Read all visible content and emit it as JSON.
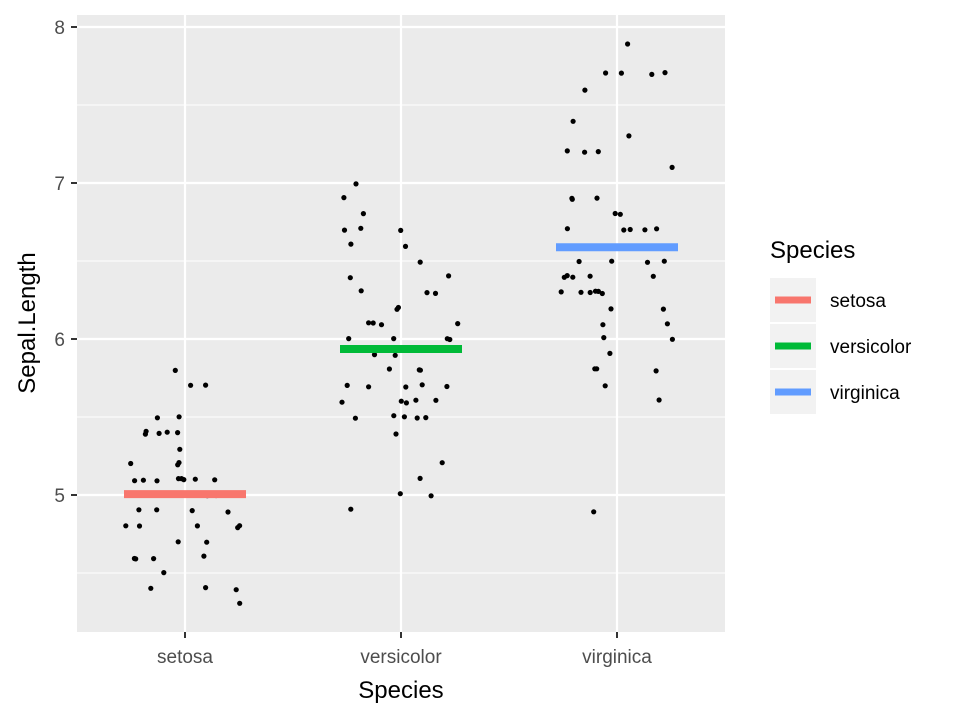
{
  "chart_data": {
    "type": "scatter",
    "xlabel": "Species",
    "ylabel": "Sepal.Length",
    "categories": [
      "setosa",
      "versicolor",
      "virginica"
    ],
    "yticks": [
      "5",
      "6",
      "7",
      "8"
    ],
    "ylim": [
      4.2,
      8.1
    ],
    "grid": true,
    "legend": {
      "title": "Species",
      "position": "right",
      "entries": [
        {
          "label": "setosa",
          "color": "#F8766D"
        },
        {
          "label": "versicolor",
          "color": "#00BA38"
        },
        {
          "label": "virginica",
          "color": "#619CFF"
        }
      ]
    },
    "means": [
      {
        "category": "setosa",
        "value": 5.006,
        "color": "#F8766D"
      },
      {
        "category": "versicolor",
        "value": 5.936,
        "color": "#00BA38"
      },
      {
        "category": "virginica",
        "value": 6.588,
        "color": "#619CFF"
      }
    ],
    "points": [
      {
        "category": "setosa",
        "values": [
          5.1,
          4.9,
          4.7,
          4.6,
          5.0,
          5.4,
          4.6,
          5.0,
          4.4,
          4.9,
          5.4,
          4.8,
          4.8,
          4.3,
          5.8,
          5.7,
          5.4,
          5.1,
          5.7,
          5.1,
          5.4,
          5.1,
          4.6,
          5.1,
          4.8,
          5.0,
          5.0,
          5.2,
          5.2,
          4.7,
          4.8,
          5.4,
          5.2,
          5.5,
          4.9,
          5.0,
          5.5,
          4.9,
          4.4,
          5.1,
          5.0,
          4.5,
          4.4,
          5.0,
          5.1,
          4.8,
          5.1,
          4.6,
          5.3,
          5.0
        ]
      },
      {
        "category": "versicolor",
        "values": [
          7.0,
          6.4,
          6.9,
          5.5,
          6.5,
          5.7,
          6.3,
          4.9,
          6.6,
          5.2,
          5.0,
          5.9,
          6.0,
          6.1,
          5.6,
          6.7,
          5.6,
          5.8,
          6.2,
          5.6,
          5.9,
          6.1,
          6.3,
          6.1,
          6.4,
          6.6,
          6.8,
          6.7,
          6.0,
          5.7,
          5.5,
          5.5,
          5.8,
          6.0,
          5.4,
          6.0,
          6.7,
          6.3,
          5.6,
          5.5,
          5.5,
          6.1,
          5.8,
          5.0,
          5.6,
          5.7,
          5.7,
          6.2,
          5.1,
          5.7
        ]
      },
      {
        "category": "virginica",
        "values": [
          6.3,
          5.8,
          7.1,
          6.3,
          6.5,
          7.6,
          4.9,
          7.3,
          6.7,
          7.2,
          6.5,
          6.4,
          6.8,
          5.7,
          5.8,
          6.4,
          6.5,
          7.7,
          7.7,
          6.0,
          6.9,
          5.6,
          7.7,
          6.3,
          6.7,
          7.2,
          6.2,
          6.1,
          6.4,
          7.2,
          7.4,
          7.9,
          6.4,
          6.3,
          6.1,
          7.7,
          6.3,
          6.4,
          6.0,
          6.9,
          6.7,
          6.9,
          5.8,
          6.8,
          6.7,
          6.7,
          6.3,
          6.5,
          6.2,
          5.9
        ]
      }
    ]
  }
}
